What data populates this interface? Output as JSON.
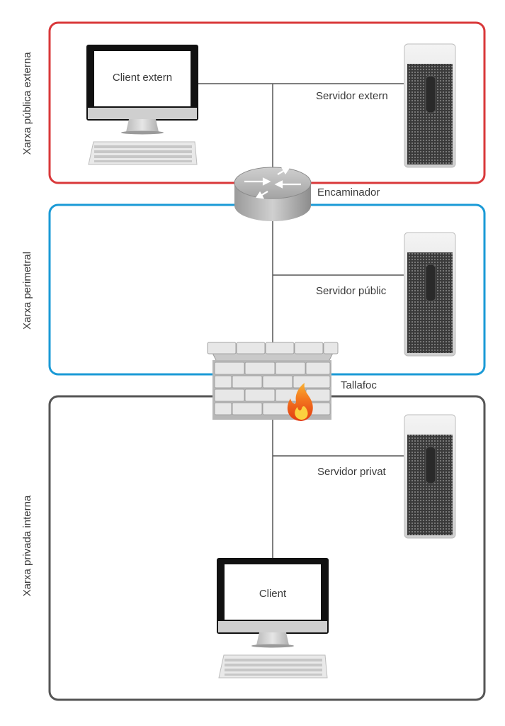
{
  "zones": {
    "external": {
      "label": "Xarxa pública externa",
      "color": "#d9383a"
    },
    "perimeter": {
      "label": "Xarxa perimetral",
      "color": "#1a9ad6"
    },
    "internal": {
      "label": "Xarxa privada interna",
      "color": "#555555"
    }
  },
  "devices": {
    "external_client": "Client extern",
    "external_server": "Servidor extern",
    "router": "Encaminador",
    "public_server": "Servidor públic",
    "firewall": "Tallafoc",
    "private_server": "Servidor privat",
    "client": "Client"
  }
}
